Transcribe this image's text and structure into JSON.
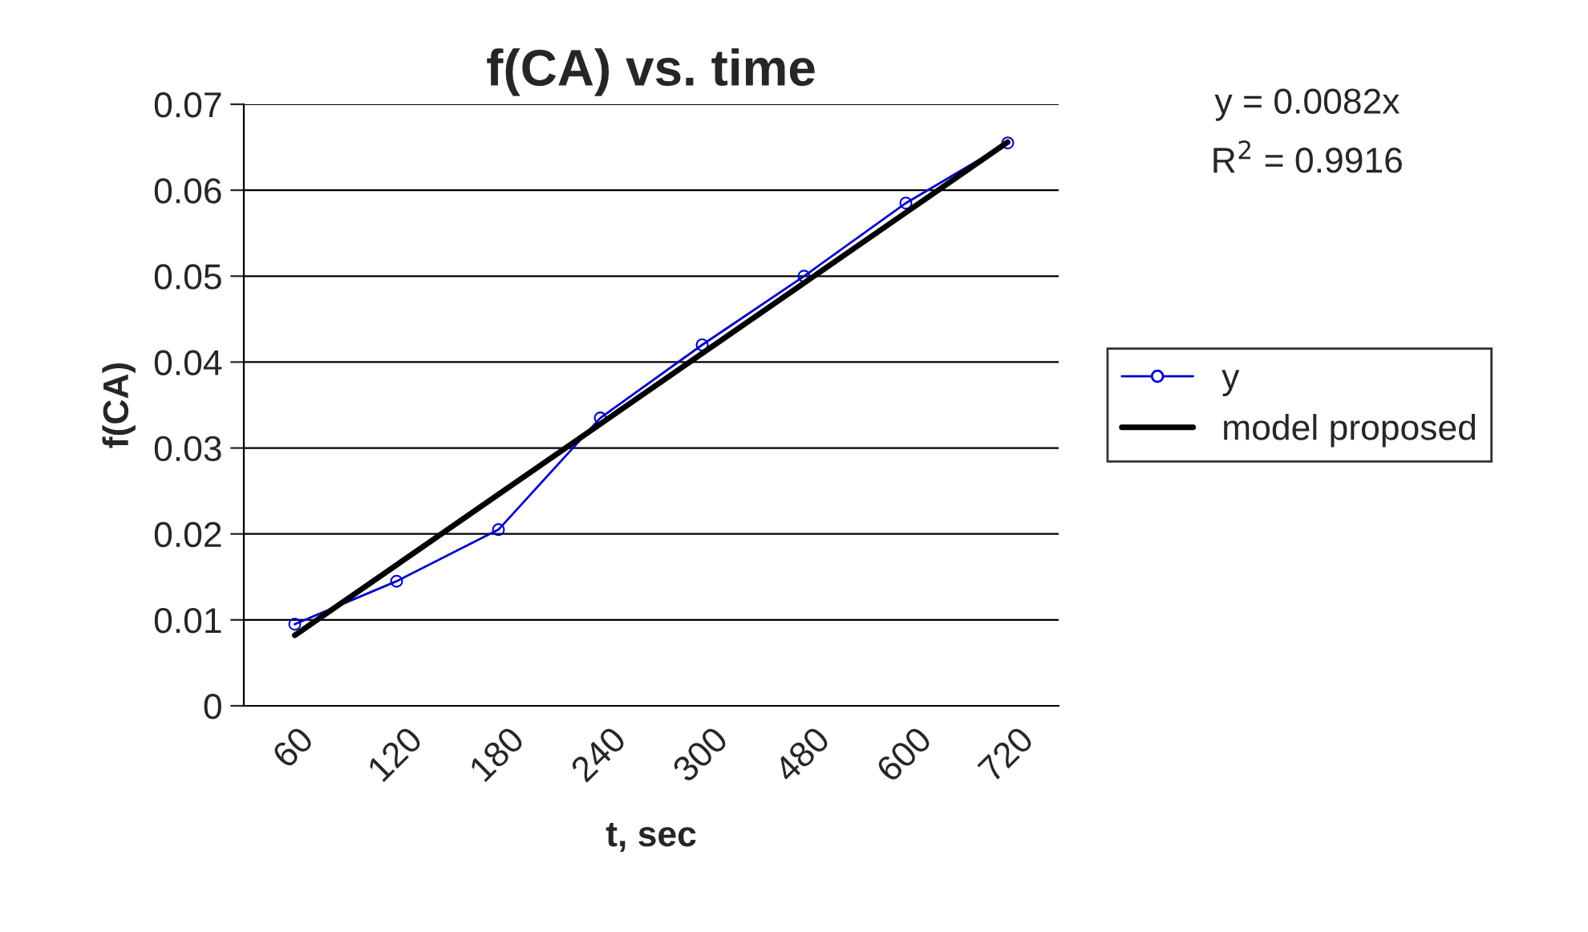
{
  "chart_data": {
    "type": "line",
    "title": "f(CA) vs. time",
    "xlabel": "t, sec",
    "ylabel": "f(CA)",
    "categories": [
      "60",
      "120",
      "180",
      "240",
      "300",
      "480",
      "600",
      "720"
    ],
    "series": [
      {
        "name": "y",
        "color": "#0000cc",
        "marker": "circle",
        "values": [
          0.0095,
          0.0145,
          0.0205,
          0.0335,
          0.042,
          0.05,
          0.0585,
          0.0655
        ]
      },
      {
        "name": "model proposed",
        "color": "#000000",
        "marker": "none",
        "values": [
          0.0082,
          0.0164,
          0.0246,
          0.0328,
          0.041,
          0.0492,
          0.0574,
          0.0656
        ]
      }
    ],
    "annotations": [
      "y = 0.0082x",
      "R$^{2}$ = 0.9916"
    ],
    "ylim": [
      0,
      0.07
    ],
    "yticks": [
      0,
      0.01,
      0.02,
      0.03,
      0.04,
      0.05,
      0.06,
      0.07
    ],
    "grid": "y",
    "legend": "right"
  }
}
